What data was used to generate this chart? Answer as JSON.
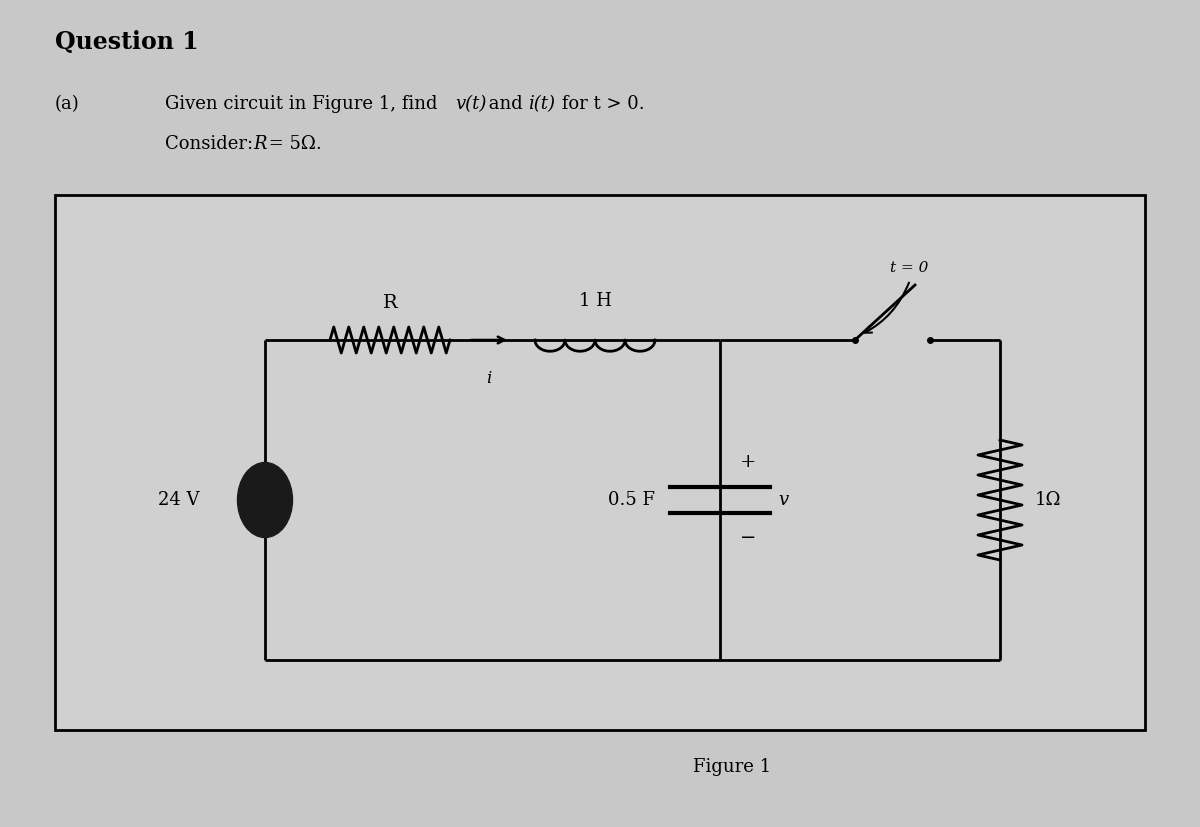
{
  "page_bg": "#c8c8c8",
  "box_bg": "#d0d0d0",
  "title": "Question 1",
  "part_a_text": "(a)",
  "description_line1": "Given circuit in Figure 1, find v(t) and i(t) for t > 0.",
  "description_line2": "Consider: R = 5Ω.",
  "figure_label": "Figure 1",
  "circuit": {
    "voltage_source": "24 V",
    "resistor_label": "R",
    "inductor_label": "1 H",
    "capacitor_label": "0.5 F",
    "load_resistor_label": "1Ω",
    "switch_label": "t = 0",
    "current_label": "i",
    "v_plus": "+",
    "v_minus": "−",
    "v_label": "v"
  }
}
